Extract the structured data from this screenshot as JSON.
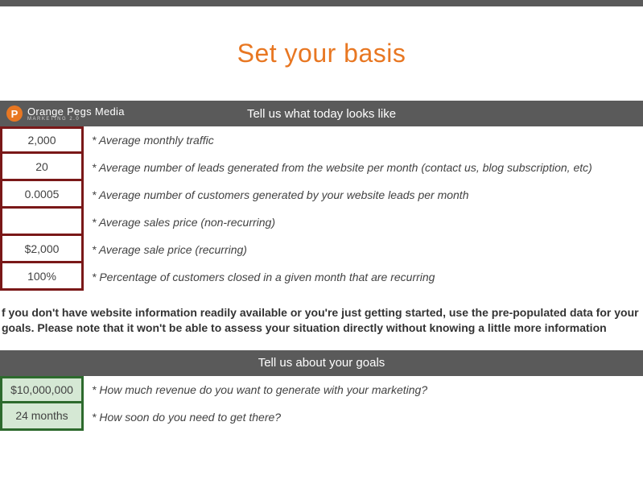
{
  "colors": {
    "accent": "#e87722",
    "header_bg": "#5a5a5a",
    "header_text": "#ffffff",
    "today_border": "#7a1818",
    "today_cell_bg": "#ffffff",
    "goals_border": "#2d6a2d",
    "goals_cell_bg": "#d5e8d4",
    "text": "#424242",
    "info_text": "#333333"
  },
  "page": {
    "title": "Set your basis"
  },
  "brand": {
    "name": "Orange Pegs Media",
    "subtitle": "MARKETING 2.0",
    "icon_letter": "P"
  },
  "section_today": {
    "title": "Tell us what today looks like",
    "rows": [
      {
        "value": "2,000",
        "label": "* Average monthly traffic"
      },
      {
        "value": "20",
        "label": "* Average number of leads generated from the website per month (contact us, blog subscription, etc)"
      },
      {
        "value": "0.0005",
        "label": "* Average number of customers generated by your website leads per month"
      },
      {
        "value": "",
        "label": "* Average sales price (non-recurring)"
      },
      {
        "value": "$2,000",
        "label": "* Average sale price (recurring)"
      },
      {
        "value": "100%",
        "label": "* Percentage of customers closed in a given month that are recurring"
      }
    ]
  },
  "info_text": "f you don't have website information readily available or you're just getting started, use the pre-populated data for your goals. Please note that it won't be able to assess your situation directly without knowing a little more information",
  "section_goals": {
    "title": "Tell us about your goals",
    "rows": [
      {
        "value": "$10,000,000",
        "label": "* How much revenue do you want to generate with your marketing?"
      },
      {
        "value": "24 months",
        "label": "* How soon do you need to get there?"
      }
    ]
  }
}
